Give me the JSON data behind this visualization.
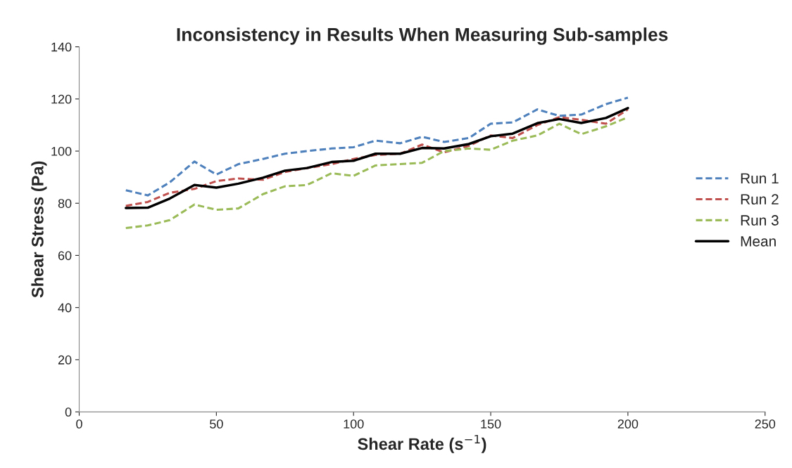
{
  "chart_data": {
    "type": "line",
    "title": "Inconsistency in Results When Measuring Sub-samples",
    "xlabel": "Shear Rate (s$^{−1}$)",
    "ylabel": "Shear Stress (Pa)",
    "x": [
      17,
      25,
      33,
      42,
      50,
      58,
      67,
      75,
      83,
      92,
      100,
      108,
      117,
      125,
      133,
      142,
      150,
      158,
      167,
      175,
      183,
      192,
      200
    ],
    "series": [
      {
        "name": "Run 1",
        "color": "#4f81bd",
        "line_style": "dashed",
        "values": [
          85,
          83,
          88,
          96,
          91,
          95,
          97,
          99,
          100,
          101,
          101.5,
          104,
          103,
          105.5,
          103.5,
          105,
          110.5,
          111,
          116,
          113.5,
          114,
          118,
          120.5
        ]
      },
      {
        "name": "Run 2",
        "color": "#c0504d",
        "line_style": "dashed",
        "values": [
          79,
          80.5,
          84,
          85.5,
          88.5,
          89.5,
          89,
          92,
          93.5,
          95,
          97,
          98.5,
          99,
          102.5,
          99.5,
          102,
          106,
          105,
          110,
          113,
          112,
          110.5,
          116
        ]
      },
      {
        "name": "Run 3",
        "color": "#9bbb59",
        "line_style": "dashed",
        "values": [
          70.5,
          71.5,
          73.5,
          79.5,
          77.5,
          78,
          83.5,
          86.5,
          87,
          91.5,
          90.5,
          94.5,
          95,
          95.5,
          100,
          101,
          100.5,
          104,
          106,
          110.5,
          106.5,
          109.5,
          113
        ]
      },
      {
        "name": "Mean",
        "color": "#000000",
        "line_style": "solid",
        "values": [
          78.2,
          78.3,
          81.8,
          87,
          86,
          87.5,
          89.8,
          92.5,
          93.5,
          95.8,
          96.3,
          99,
          99,
          101.2,
          101,
          102.7,
          105.7,
          106.7,
          110.7,
          112.3,
          110.8,
          112.7,
          116.5
        ]
      }
    ],
    "xlim": [
      0,
      250
    ],
    "xticks": [
      0,
      50,
      100,
      150,
      200,
      250
    ],
    "ylim": [
      0,
      140
    ],
    "yticks": [
      0,
      20,
      40,
      60,
      80,
      100,
      120,
      140
    ],
    "grid": false,
    "legend": "right",
    "marker": "none"
  }
}
